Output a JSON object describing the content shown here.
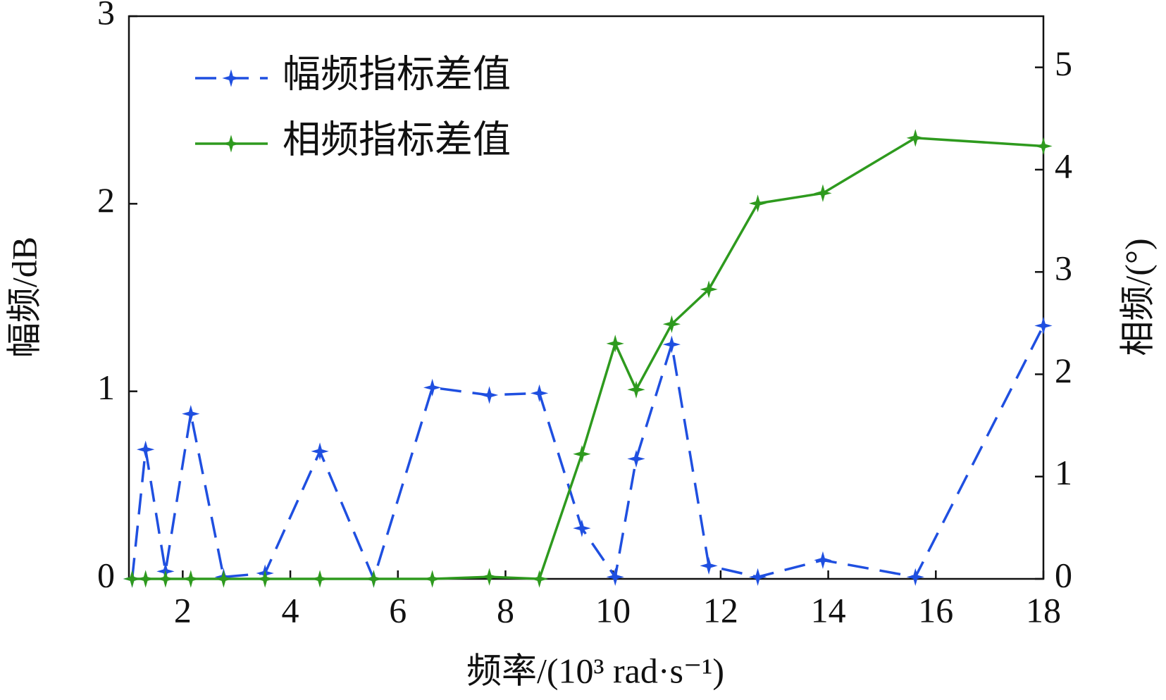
{
  "chart_data": {
    "type": "line",
    "x_label": "频率/(10³ rad·s⁻¹)",
    "y_label": "幅频/dB",
    "y2_label": "相频/(°)",
    "x": [
      1.06,
      1.31,
      1.68,
      2.15,
      2.76,
      3.53,
      4.55,
      5.55,
      6.64,
      7.7,
      8.63,
      9.42,
      10.04,
      10.43,
      11.09,
      11.78,
      12.69,
      13.9,
      15.62,
      18
    ],
    "series": [
      {
        "name": "幅频指标差值",
        "color": "#1f4fe0",
        "dash": true,
        "values": [
          0,
          0.69,
          0.04,
          0.88,
          0.01,
          0.03,
          0.68,
          0,
          1.02,
          0.98,
          0.99,
          0.27,
          0.01,
          0.64,
          1.25,
          0.07,
          0.01,
          0.1,
          0.01,
          1.35
        ]
      },
      {
        "name": "相频指标差值",
        "color": "#2e9a1e",
        "axis": "y2",
        "values": [
          0,
          0,
          0,
          0,
          0,
          0,
          0,
          0,
          0,
          0.02,
          0,
          1.22,
          2.3,
          1.85,
          2.49,
          2.83,
          3.67,
          3.77,
          4.31,
          4.23
        ]
      }
    ],
    "xlim": [
      1,
      18
    ],
    "xticks": [
      2,
      4,
      6,
      8,
      10,
      12,
      14,
      16,
      18
    ],
    "ylim": [
      0,
      3
    ],
    "yticks": [
      0,
      1,
      2,
      3
    ],
    "y2lim": [
      0,
      5.5
    ],
    "y2ticks": [
      0,
      1,
      2,
      3,
      4,
      5
    ],
    "legend": "upper left"
  }
}
